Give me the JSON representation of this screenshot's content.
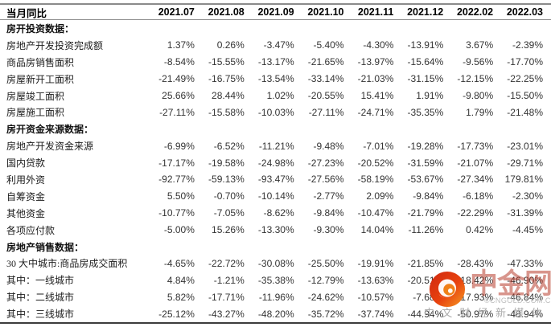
{
  "table": {
    "header": {
      "label": "当月同比",
      "columns": [
        "2021.07",
        "2021.08",
        "2021.09",
        "2021.10",
        "2021.11",
        "2021.12",
        "2022.02",
        "2022.03"
      ]
    },
    "sections": [
      {
        "title": "房开投资数据：",
        "rows": [
          {
            "label": "房地产开发投资完成额",
            "values": [
              "1.37%",
              "0.26%",
              "-3.47%",
              "-5.40%",
              "-4.30%",
              "-13.91%",
              "3.67%",
              "-2.39%"
            ]
          },
          {
            "label": "商品房销售面积",
            "values": [
              "-8.54%",
              "-15.55%",
              "-13.17%",
              "-21.65%",
              "-13.97%",
              "-15.64%",
              "-9.56%",
              "-17.70%"
            ]
          },
          {
            "label": "房屋新开工面积",
            "values": [
              "-21.49%",
              "-16.75%",
              "-13.54%",
              "-33.14%",
              "-21.03%",
              "-31.15%",
              "-12.15%",
              "-22.25%"
            ]
          },
          {
            "label": "房屋竣工面积",
            "values": [
              "25.66%",
              "28.44%",
              "1.02%",
              "-20.55%",
              "15.41%",
              "1.91%",
              "-9.80%",
              "-15.50%"
            ]
          },
          {
            "label": "房屋施工面积",
            "values": [
              "-27.11%",
              "-15.58%",
              "-10.03%",
              "-27.11%",
              "-24.71%",
              "-35.35%",
              "1.79%",
              "-21.48%"
            ]
          }
        ]
      },
      {
        "title": "房开资金来源数据：",
        "rows": [
          {
            "label": "房地产开发资金来源",
            "values": [
              "-6.99%",
              "-6.52%",
              "-11.21%",
              "-9.48%",
              "-7.01%",
              "-19.28%",
              "-17.73%",
              "-23.01%"
            ]
          },
          {
            "label": "国内贷款",
            "values": [
              "-17.17%",
              "-19.58%",
              "-24.98%",
              "-27.23%",
              "-20.52%",
              "-31.59%",
              "-21.07%",
              "-29.71%"
            ]
          },
          {
            "label": "利用外资",
            "values": [
              "-92.77%",
              "-59.13%",
              "-93.47%",
              "-27.56%",
              "-58.19%",
              "-53.67%",
              "-27.34%",
              "179.81%"
            ]
          },
          {
            "label": "自筹资金",
            "values": [
              "5.50%",
              "-0.70%",
              "-10.14%",
              "-2.77%",
              "2.09%",
              "-9.84%",
              "-6.18%",
              "-2.30%"
            ]
          },
          {
            "label": "其他资金",
            "values": [
              "-10.77%",
              "-7.05%",
              "-8.62%",
              "-9.84%",
              "-10.47%",
              "-21.79%",
              "-22.29%",
              "-31.39%"
            ]
          },
          {
            "label": "各项应付款",
            "values": [
              "-5.00%",
              "15.26%",
              "-13.30%",
              "-9.30%",
              "14.04%",
              "-11.26%",
              "0.42%",
              "-4.45%"
            ]
          }
        ]
      },
      {
        "title": "房地产销售数据：",
        "rows": [
          {
            "label": "30 大中城市:商品房成交面积",
            "values": [
              "-4.65%",
              "-22.72%",
              "-30.08%",
              "-25.50%",
              "-19.91%",
              "-21.85%",
              "-28.43%",
              "-47.33%"
            ]
          },
          {
            "label": "其中：一线城市",
            "values": [
              "4.84%",
              "-1.21%",
              "-35.38%",
              "-12.79%",
              "-13.63%",
              "-20.51%",
              "-18.42%",
              "-46.90%"
            ]
          },
          {
            "label": "其中：二线城市",
            "values": [
              "5.82%",
              "-17.71%",
              "-11.96%",
              "-24.62%",
              "-10.57%",
              "-7.68%",
              "-17.93%",
              "-46.84%"
            ]
          },
          {
            "label": "其中：三线城市",
            "values": [
              "-25.12%",
              "-43.27%",
              "-48.20%",
              "-35.72%",
              "-37.74%",
              "-44.94%",
              "-50.97%",
              "-48.94%"
            ]
          }
        ]
      }
    ]
  },
  "watermark": {
    "title": "中金网",
    "url": "©CNGOLD.COM.CN",
    "tagline": "中 文 财 经 新 媒 体",
    "logo_colors": {
      "outer_red": "#dd3314",
      "inner_orange": "#f59a23",
      "swirl": "#ffffff"
    }
  }
}
